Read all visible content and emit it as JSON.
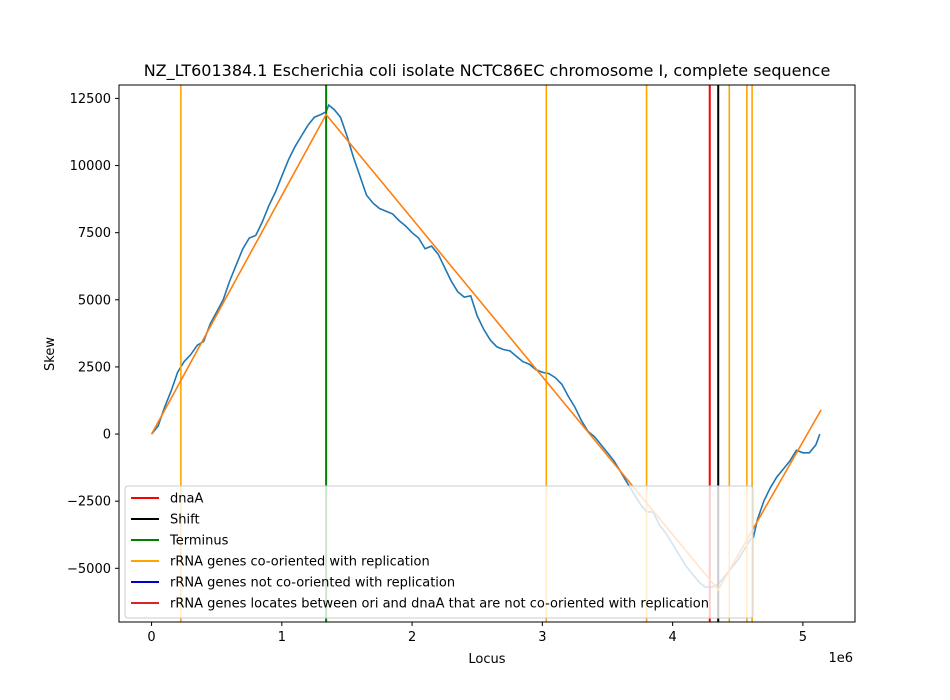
{
  "chart_data": {
    "type": "line",
    "title": "NZ_LT601384.1 Escherichia coli isolate NCTC86EC chromosome I, complete sequence",
    "xlabel": "Locus",
    "ylabel": "Skew",
    "x_offset_label": "1e6",
    "xlim": [
      -250000,
      5400000
    ],
    "ylim": [
      -7000,
      13000
    ],
    "x_ticks": [
      0,
      1000000,
      2000000,
      3000000,
      4000000,
      5000000
    ],
    "x_tick_labels": [
      "0",
      "1",
      "2",
      "3",
      "4",
      "5"
    ],
    "y_ticks": [
      -5000,
      -2500,
      0,
      2500,
      5000,
      7500,
      10000,
      12500
    ],
    "y_tick_labels": [
      "−5000",
      "−2500",
      "0",
      "2500",
      "5000",
      "7500",
      "10000",
      "12500"
    ],
    "colors": {
      "skew": "#1f77b4",
      "fit": "#ff7f0e",
      "dnaA": "#ff0000",
      "shift": "#000000",
      "terminus": "#008000",
      "rrna_co": "#ffa500",
      "rrna_not_co": "#0000cd",
      "rrna_between": "#d62728"
    },
    "skew_series": {
      "name": "skew",
      "points": [
        [
          0,
          0
        ],
        [
          50000,
          300
        ],
        [
          100000,
          1000
        ],
        [
          150000,
          1600
        ],
        [
          200000,
          2300
        ],
        [
          250000,
          2700
        ],
        [
          300000,
          2950
        ],
        [
          350000,
          3300
        ],
        [
          400000,
          3450
        ],
        [
          450000,
          4100
        ],
        [
          500000,
          4550
        ],
        [
          550000,
          5000
        ],
        [
          600000,
          5700
        ],
        [
          650000,
          6300
        ],
        [
          700000,
          6900
        ],
        [
          750000,
          7300
        ],
        [
          800000,
          7400
        ],
        [
          850000,
          7900
        ],
        [
          900000,
          8500
        ],
        [
          950000,
          9000
        ],
        [
          1000000,
          9600
        ],
        [
          1050000,
          10200
        ],
        [
          1100000,
          10700
        ],
        [
          1150000,
          11100
        ],
        [
          1200000,
          11500
        ],
        [
          1250000,
          11800
        ],
        [
          1300000,
          11900
        ],
        [
          1340000,
          12000
        ],
        [
          1360000,
          12250
        ],
        [
          1400000,
          12100
        ],
        [
          1450000,
          11800
        ],
        [
          1500000,
          11100
        ],
        [
          1550000,
          10300
        ],
        [
          1600000,
          9600
        ],
        [
          1650000,
          8900
        ],
        [
          1700000,
          8600
        ],
        [
          1750000,
          8400
        ],
        [
          1800000,
          8300
        ],
        [
          1850000,
          8200
        ],
        [
          1900000,
          7950
        ],
        [
          1950000,
          7750
        ],
        [
          2000000,
          7500
        ],
        [
          2050000,
          7300
        ],
        [
          2100000,
          6900
        ],
        [
          2150000,
          7000
        ],
        [
          2200000,
          6700
        ],
        [
          2250000,
          6200
        ],
        [
          2300000,
          5700
        ],
        [
          2350000,
          5300
        ],
        [
          2400000,
          5100
        ],
        [
          2450000,
          5150
        ],
        [
          2500000,
          4400
        ],
        [
          2550000,
          3900
        ],
        [
          2600000,
          3500
        ],
        [
          2650000,
          3250
        ],
        [
          2700000,
          3150
        ],
        [
          2750000,
          3100
        ],
        [
          2800000,
          2900
        ],
        [
          2850000,
          2700
        ],
        [
          2900000,
          2600
        ],
        [
          2950000,
          2400
        ],
        [
          3000000,
          2300
        ],
        [
          3050000,
          2250
        ],
        [
          3100000,
          2100
        ],
        [
          3150000,
          1850
        ],
        [
          3200000,
          1400
        ],
        [
          3250000,
          1000
        ],
        [
          3300000,
          500
        ],
        [
          3350000,
          100
        ],
        [
          3400000,
          -100
        ],
        [
          3450000,
          -400
        ],
        [
          3500000,
          -700
        ],
        [
          3550000,
          -1000
        ],
        [
          3600000,
          -1400
        ],
        [
          3650000,
          -1800
        ],
        [
          3700000,
          -2200
        ],
        [
          3750000,
          -2600
        ],
        [
          3800000,
          -2900
        ],
        [
          3850000,
          -2900
        ],
        [
          3900000,
          -3400
        ],
        [
          3950000,
          -3700
        ],
        [
          4000000,
          -4100
        ],
        [
          4050000,
          -4500
        ],
        [
          4100000,
          -4900
        ],
        [
          4150000,
          -5200
        ],
        [
          4200000,
          -5500
        ],
        [
          4250000,
          -5700
        ],
        [
          4300000,
          -5700
        ],
        [
          4350000,
          -5600
        ],
        [
          4400000,
          -5300
        ],
        [
          4450000,
          -5000
        ],
        [
          4500000,
          -4700
        ],
        [
          4550000,
          -4300
        ],
        [
          4600000,
          -3900
        ],
        [
          4620000,
          -3850
        ],
        [
          4650000,
          -3200
        ],
        [
          4700000,
          -2500
        ],
        [
          4750000,
          -2000
        ],
        [
          4800000,
          -1600
        ],
        [
          4850000,
          -1300
        ],
        [
          4900000,
          -1000
        ],
        [
          4950000,
          -600
        ],
        [
          5000000,
          -700
        ],
        [
          5050000,
          -700
        ],
        [
          5100000,
          -400
        ],
        [
          5130000,
          0
        ]
      ]
    },
    "fit_series": {
      "name": "fit",
      "points": [
        [
          0,
          0
        ],
        [
          1340000,
          11900
        ],
        [
          4350000,
          -5800
        ],
        [
          5140000,
          900
        ]
      ]
    },
    "vertical_lines": [
      {
        "name": "rrna-co-1",
        "x": 225000,
        "kind": "rrna_co"
      },
      {
        "name": "terminus",
        "x": 1340000,
        "kind": "terminus"
      },
      {
        "name": "rrna-co-2",
        "x": 3030000,
        "kind": "rrna_co"
      },
      {
        "name": "rrna-co-3",
        "x": 3800000,
        "kind": "rrna_co"
      },
      {
        "name": "dnaA",
        "x": 4285000,
        "kind": "dnaA"
      },
      {
        "name": "shift",
        "x": 4350000,
        "kind": "shift"
      },
      {
        "name": "rrna-co-4",
        "x": 4435000,
        "kind": "rrna_co"
      },
      {
        "name": "rrna-co-5",
        "x": 4570000,
        "kind": "rrna_co"
      },
      {
        "name": "rrna-co-6",
        "x": 4610000,
        "kind": "rrna_co"
      }
    ],
    "legend": {
      "placement": "lower-left",
      "entries": [
        {
          "label": "dnaA",
          "kind": "dnaA"
        },
        {
          "label": "Shift",
          "kind": "shift"
        },
        {
          "label": "Terminus",
          "kind": "terminus"
        },
        {
          "label": "rRNA genes co-oriented with replication",
          "kind": "rrna_co"
        },
        {
          "label": "rRNA genes not co-oriented with replication",
          "kind": "rrna_not_co"
        },
        {
          "label": "rRNA genes locates between ori and dnaA that are not co-oriented with replication",
          "kind": "rrna_between"
        }
      ]
    }
  }
}
